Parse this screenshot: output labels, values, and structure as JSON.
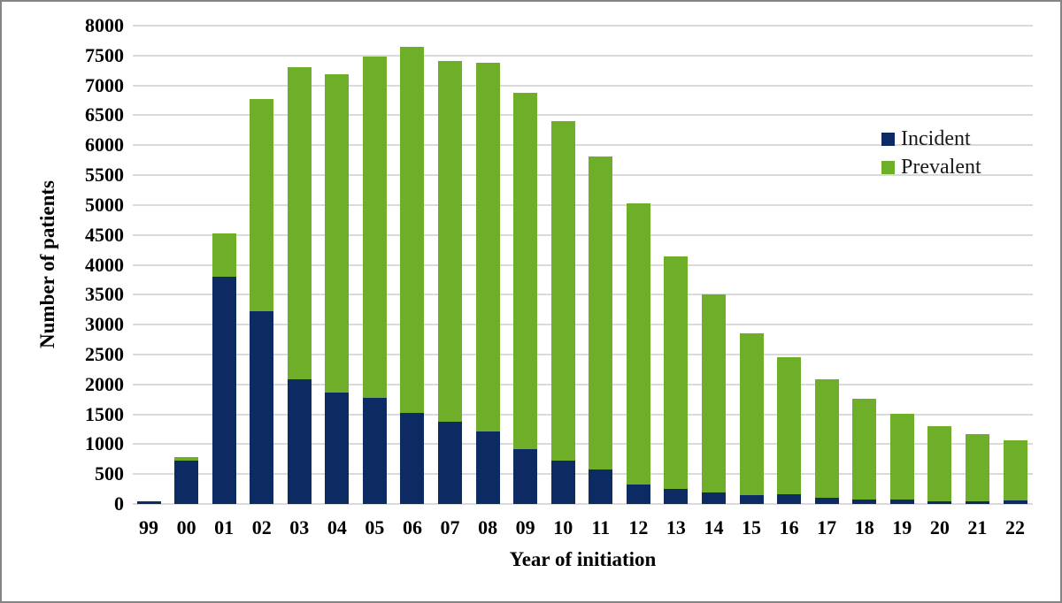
{
  "figure": {
    "background_color": "#ffffff",
    "border_color": "#848484",
    "gridline_color": "#dadada",
    "text_color": "#000000"
  },
  "chart_data": {
    "type": "bar",
    "stacked": true,
    "title": "",
    "xlabel": "Year of initiation",
    "ylabel": "Number of patients",
    "categories": [
      "99",
      "00",
      "01",
      "02",
      "03",
      "04",
      "05",
      "06",
      "07",
      "08",
      "09",
      "10",
      "11",
      "12",
      "13",
      "14",
      "15",
      "16",
      "17",
      "18",
      "19",
      "20",
      "21",
      "22"
    ],
    "series": [
      {
        "name": "Incident",
        "color": "#0e2a63",
        "values": [
          50,
          720,
          3800,
          3220,
          2080,
          1860,
          1780,
          1530,
          1370,
          1220,
          920,
          730,
          570,
          330,
          250,
          190,
          150,
          160,
          110,
          80,
          75,
          45,
          40,
          60
        ]
      },
      {
        "name": "Prevalent",
        "color": "#6fae29",
        "values": [
          0,
          70,
          720,
          3550,
          5220,
          5330,
          5710,
          6110,
          6040,
          6160,
          5950,
          5680,
          5240,
          4700,
          3890,
          3310,
          2710,
          2290,
          1980,
          1680,
          1440,
          1255,
          1130,
          1000
        ]
      }
    ],
    "ylim": [
      0,
      8000
    ],
    "ytick_step": 500,
    "yticks": [
      0,
      500,
      1000,
      1500,
      2000,
      2500,
      3000,
      3500,
      4000,
      4500,
      5000,
      5500,
      6000,
      6500,
      7000,
      7500,
      8000
    ],
    "grid": true,
    "legend_position": "inside-upper-right"
  }
}
